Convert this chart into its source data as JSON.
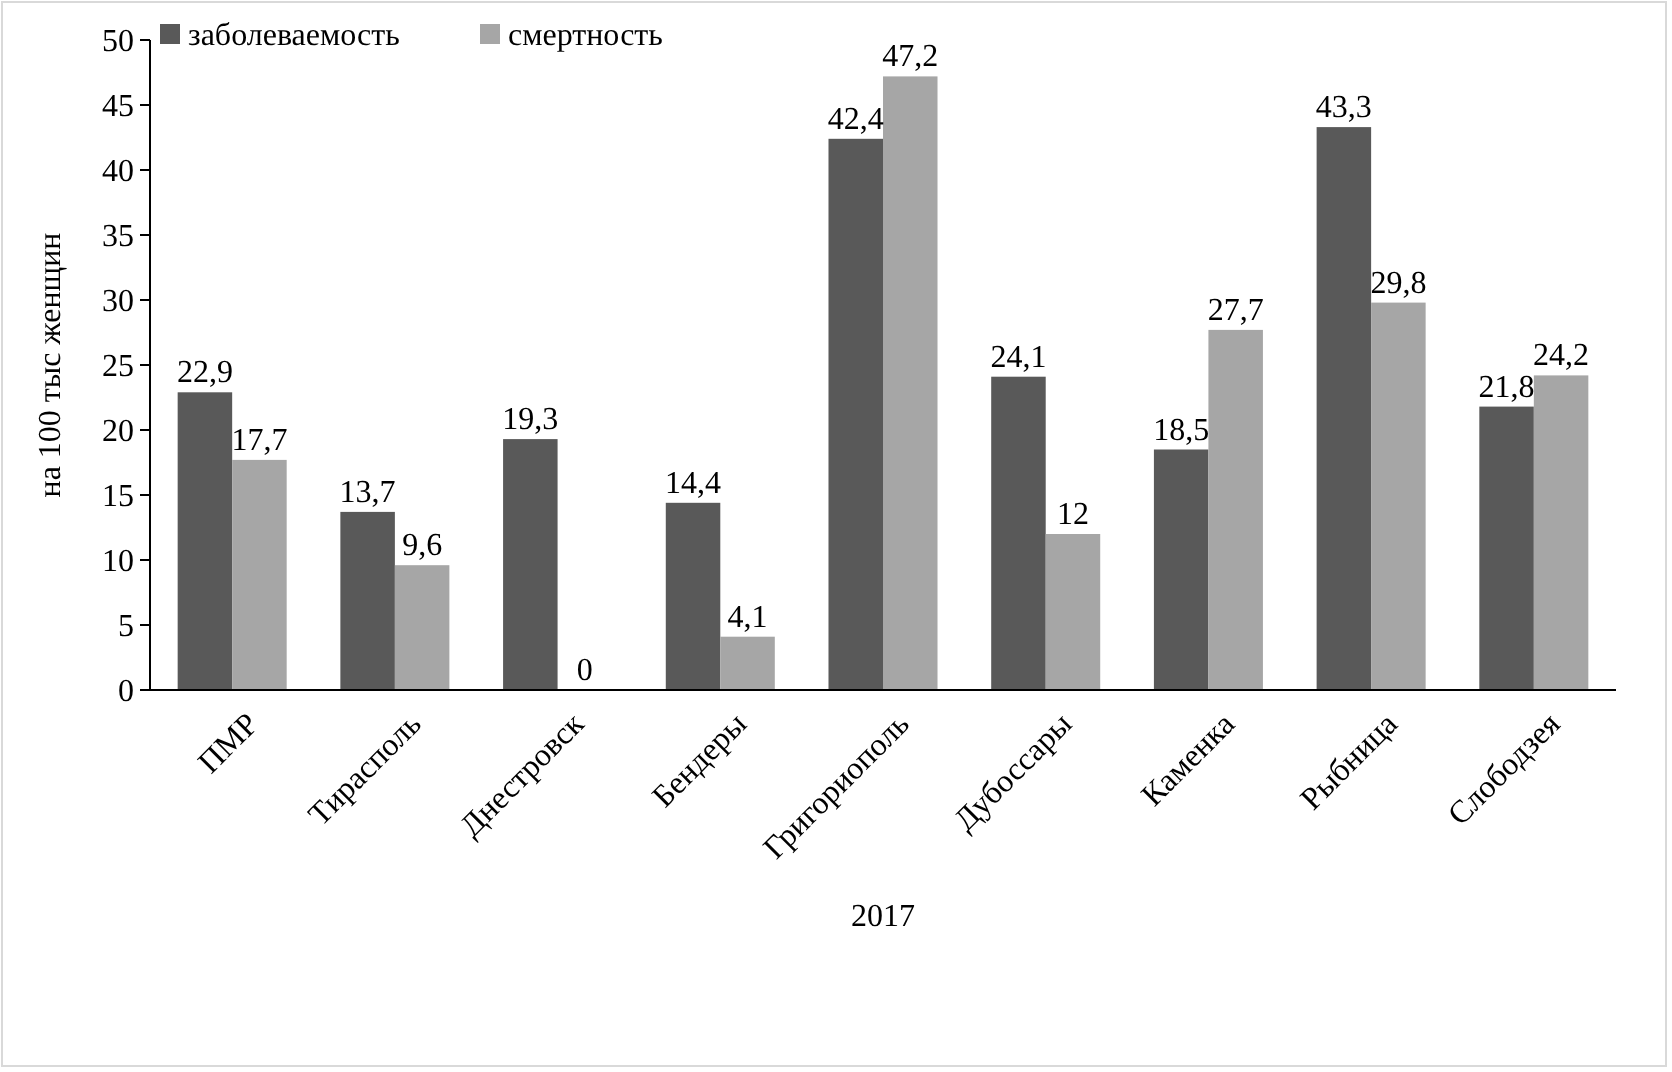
{
  "chart_data": {
    "type": "bar",
    "xlabel": "2017",
    "ylabel": "на 100 тыс женщин",
    "categories": [
      "ПМР",
      "Тирасполь",
      "Днестровск",
      "Бендеры",
      "Григориополь",
      "Дубоссары",
      "Каменка",
      "Рыбница",
      "Слободзея"
    ],
    "series": [
      {
        "name": "заболеваемость",
        "color": "#595959",
        "values": [
          22.9,
          13.7,
          19.3,
          14.4,
          42.4,
          24.1,
          18.5,
          43.3,
          21.8
        ],
        "value_labels": [
          "22,9",
          "13,7",
          "19,3",
          "14,4",
          "42,4",
          "24,1",
          "18,5",
          "43,3",
          "21,8"
        ]
      },
      {
        "name": "смертность",
        "color": "#a6a6a6",
        "values": [
          17.7,
          9.6,
          0,
          4.1,
          47.2,
          12,
          27.7,
          29.8,
          24.2
        ],
        "value_labels": [
          "17,7",
          "9,6",
          "0",
          "4,1",
          "47,2",
          "12",
          "27,7",
          "29,8",
          "24,2"
        ]
      }
    ],
    "ylim": [
      0,
      50
    ],
    "yticks": [
      0,
      5,
      10,
      15,
      20,
      25,
      30,
      35,
      40,
      45,
      50
    ],
    "grid": false,
    "legend": "top left"
  }
}
